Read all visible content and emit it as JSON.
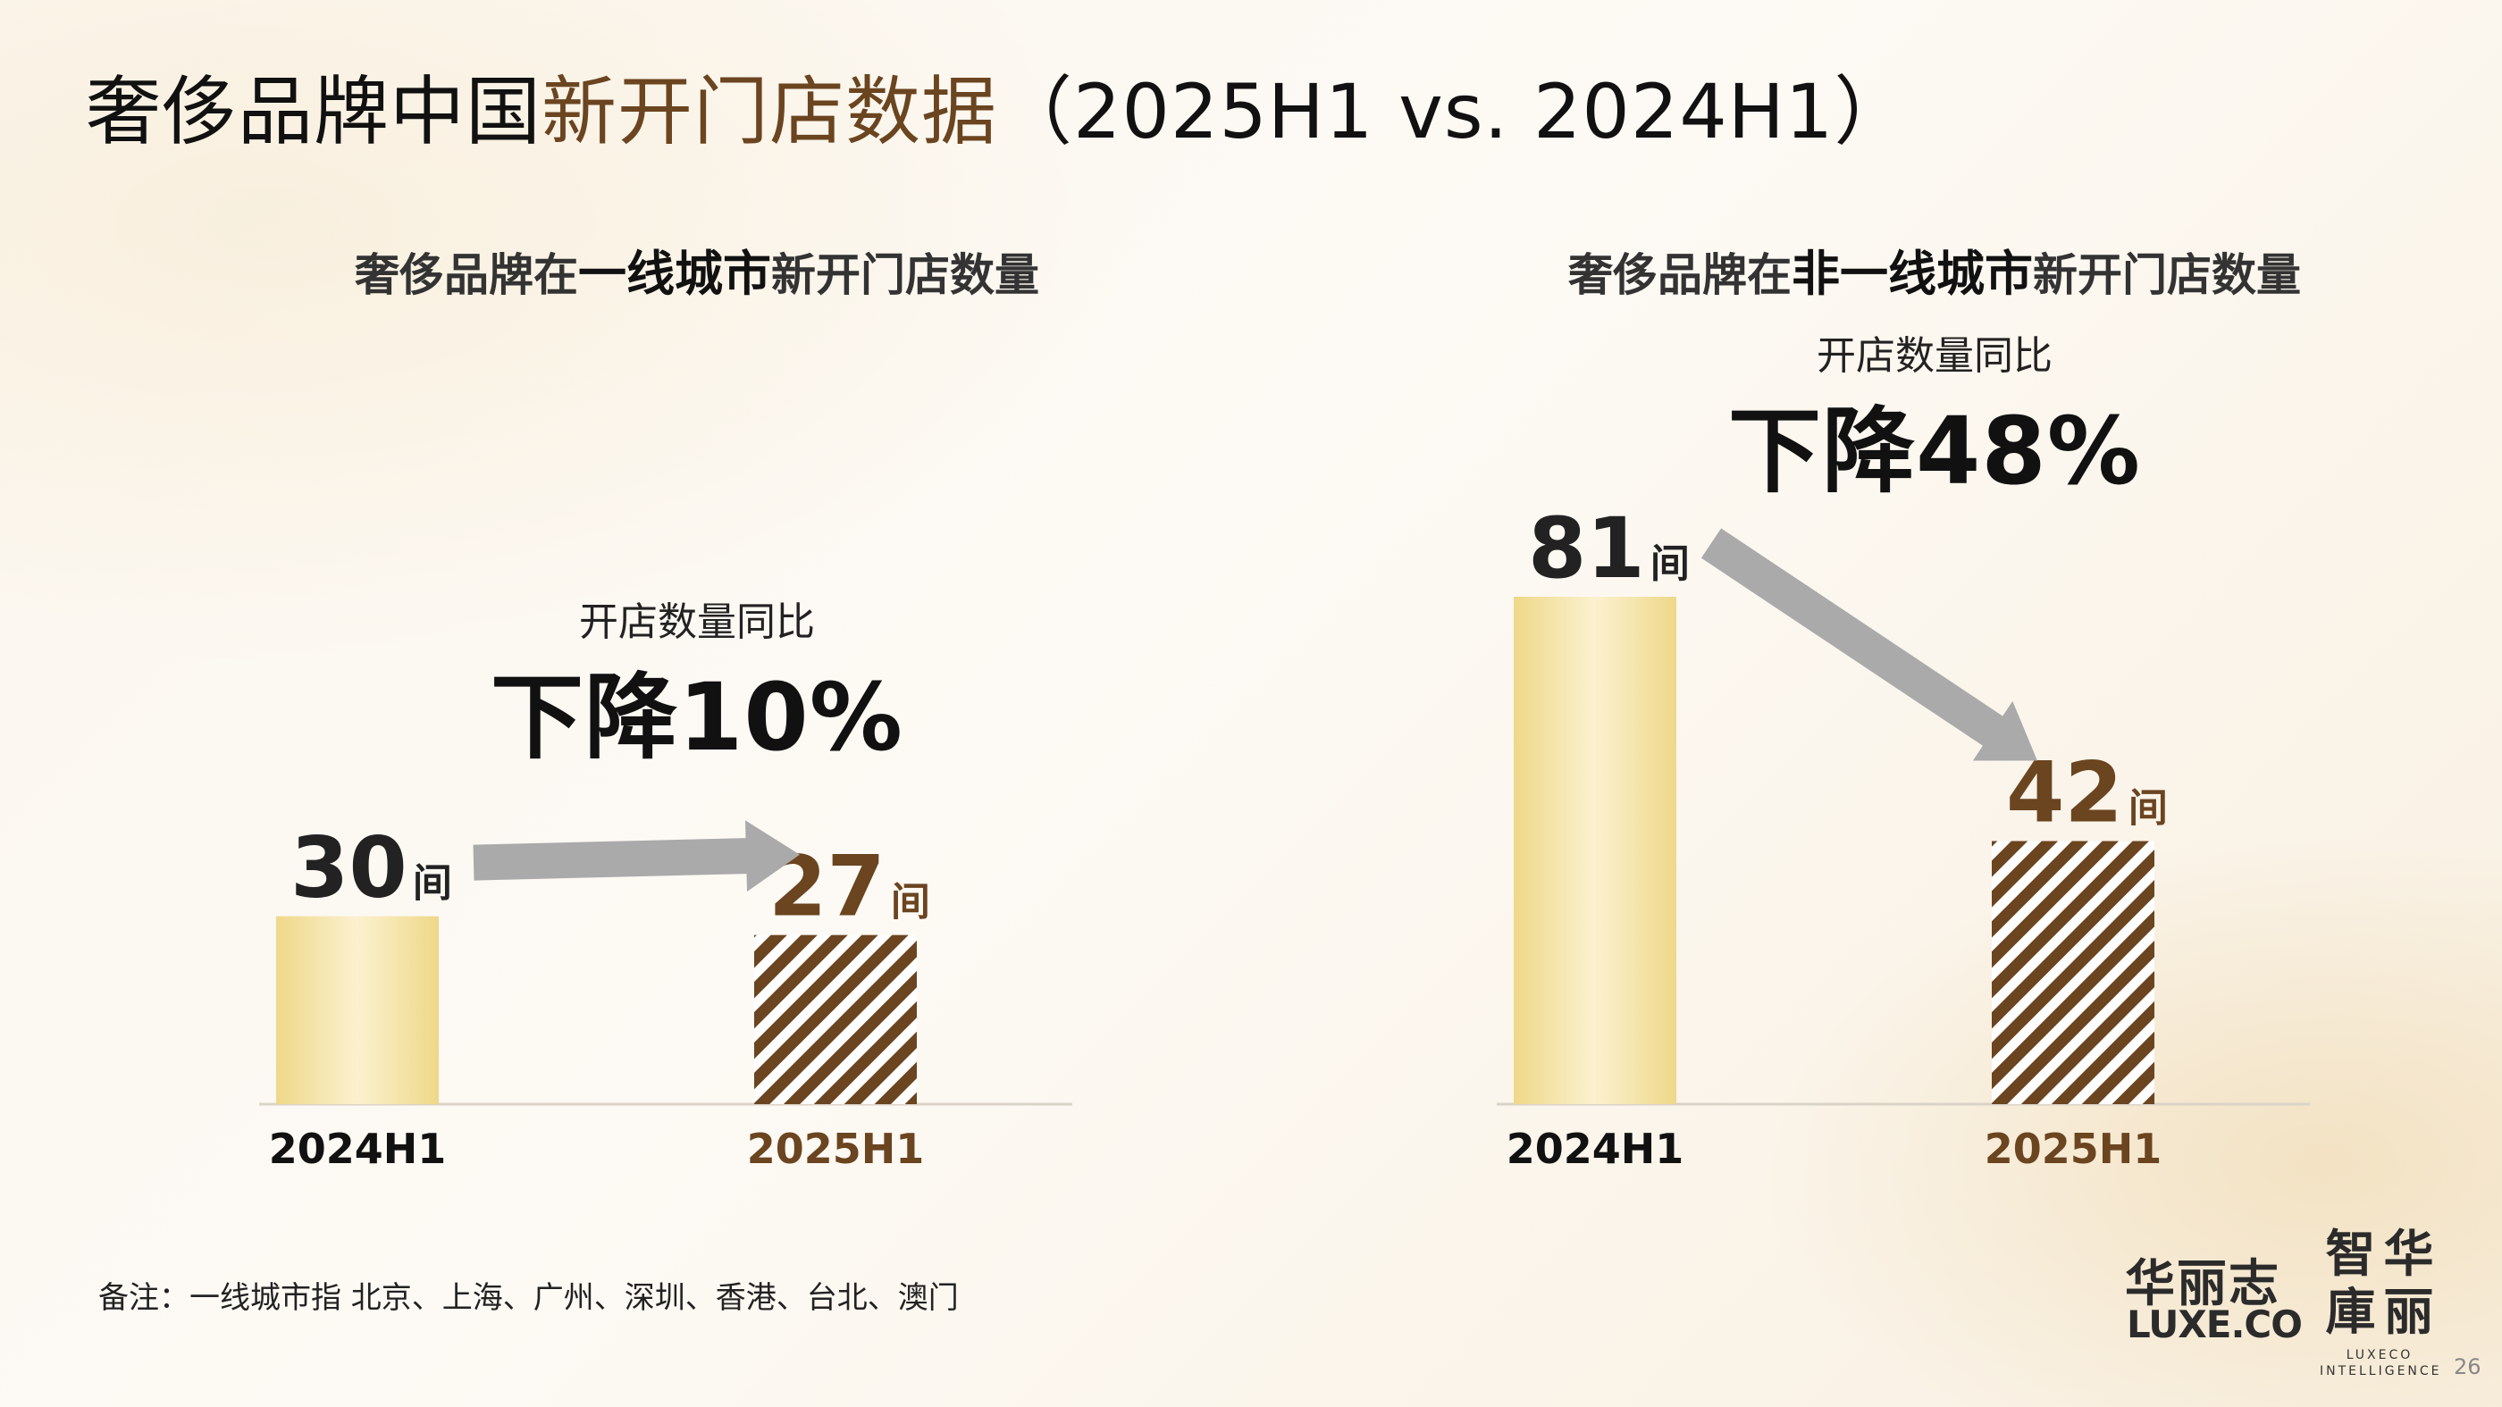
{
  "title": {
    "part1": "奢侈品牌中国",
    "part2": "新开门店数据",
    "part3": "（2025H1 vs. 2024H1）"
  },
  "panels": [
    {
      "subtitle": {
        "pre": "奢侈品牌在",
        "strong": "一线城市",
        "post": "新开门店数量"
      },
      "change_label": "开店数量同比",
      "change_value": "下降10%"
    },
    {
      "subtitle": {
        "pre": "奢侈品牌在",
        "strong": "非一线城市",
        "post": "新开门店数量"
      },
      "change_label": "开店数量同比",
      "change_value": "下降48%"
    }
  ],
  "unit": "间",
  "colors": {
    "bar_2024": "#efd889",
    "bar_2025": "#6b4420",
    "value_2024": "#222222",
    "value_2025": "#6b4420",
    "arrow": "#aaaaaa"
  },
  "chart_data": [
    {
      "type": "bar",
      "categories": [
        "2024H1",
        "2025H1"
      ],
      "values": [
        30,
        27
      ],
      "ylim": [
        0,
        81
      ]
    },
    {
      "type": "bar",
      "categories": [
        "2024H1",
        "2025H1"
      ],
      "values": [
        81,
        42
      ],
      "ylim": [
        0,
        81
      ]
    }
  ],
  "footnote": "备注：一线城市指 北京、上海、广州、深圳、香港、台北、澳门",
  "logo1": {
    "cn": "华丽志",
    "en": "LUXE.CO"
  },
  "logo2": {
    "chars": [
      "智",
      "华",
      "庫",
      "丽"
    ],
    "en": "LUXECO\nINTELLIGENCE"
  },
  "page_number": "26"
}
